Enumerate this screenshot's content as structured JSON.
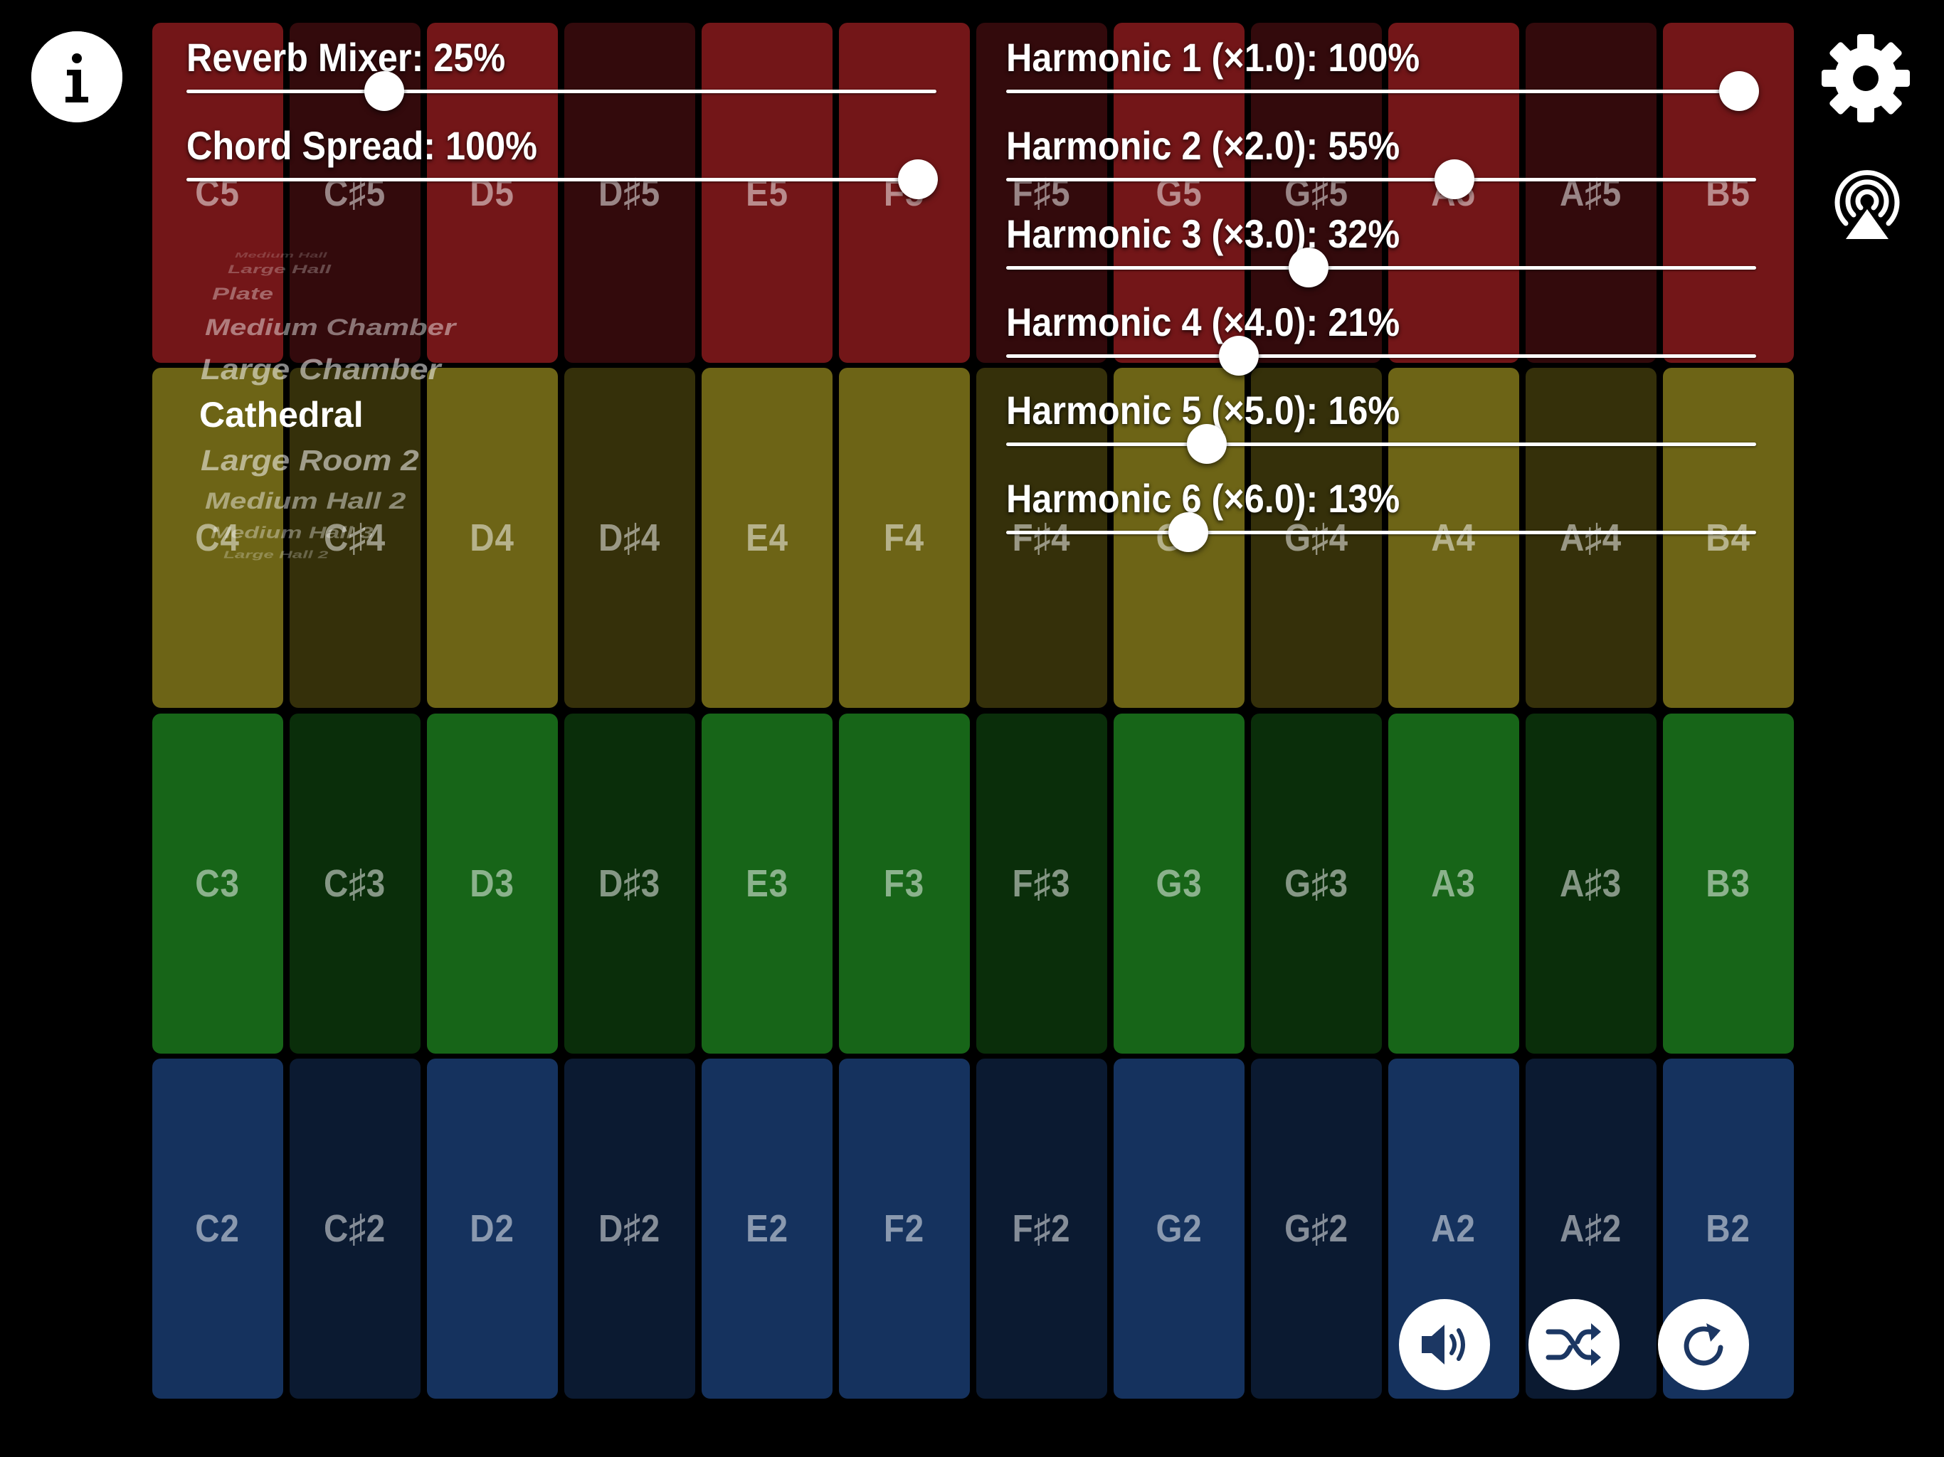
{
  "keyboard": {
    "rows": [
      {
        "octave": "5",
        "colors": [
          "#731618",
          "#330a0c"
        ],
        "keys": [
          "C5",
          "C♯5",
          "D5",
          "D♯5",
          "E5",
          "F5",
          "F♯5",
          "G5",
          "G♯5",
          "A5",
          "A♯5",
          "B5"
        ]
      },
      {
        "octave": "4",
        "colors": [
          "#6d6416",
          "#35300a"
        ],
        "keys": [
          "C4",
          "C♯4",
          "D4",
          "D♯4",
          "E4",
          "F4",
          "F♯4",
          "G4",
          "G♯4",
          "A4",
          "A♯4",
          "B4"
        ]
      },
      {
        "octave": "3",
        "colors": [
          "#176518",
          "#0a2e0a"
        ],
        "keys": [
          "C3",
          "C♯3",
          "D3",
          "D♯3",
          "E3",
          "F3",
          "F♯3",
          "G3",
          "G♯3",
          "A3",
          "A♯3",
          "B3"
        ]
      },
      {
        "octave": "2",
        "colors": [
          "#15325e",
          "#0b1a31"
        ],
        "keys": [
          "C2",
          "C♯2",
          "D2",
          "D♯2",
          "E2",
          "F2",
          "F♯2",
          "G2",
          "G♯2",
          "A2",
          "A♯2",
          "B2"
        ]
      }
    ]
  },
  "left_sliders": [
    {
      "label": "Reverb Mixer: 25%",
      "fraction": 0.25
    },
    {
      "label": "Chord Spread: 100%",
      "fraction": 1.0
    }
  ],
  "harmonics": [
    {
      "label": "Harmonic 1 (×1.0): 100%",
      "fraction": 1.0
    },
    {
      "label": "Harmonic 2 (×2.0): 55%",
      "fraction": 0.55
    },
    {
      "label": "Harmonic 3 (×3.0): 32%",
      "fraction": 0.32
    },
    {
      "label": "Harmonic 4 (×4.0): 21%",
      "fraction": 0.21
    },
    {
      "label": "Harmonic 5 (×5.0): 16%",
      "fraction": 0.16
    },
    {
      "label": "Harmonic 6 (×6.0): 13%",
      "fraction": 0.13
    }
  ],
  "reverb_presets": {
    "selected": "Cathedral",
    "items": [
      "Medium Hall",
      "Large Hall",
      "Plate",
      "Medium Chamber",
      "Large Chamber",
      "Cathedral",
      "Large Room 2",
      "Medium Hall 2",
      "Medium Hall 3",
      "Large Hall 2"
    ]
  },
  "icons": {
    "info": "info-icon",
    "settings": "gear-icon",
    "airplay": "airplay-icon",
    "volume": "speaker-icon",
    "shuffle": "shuffle-icon",
    "reset": "rotate-icon"
  },
  "colors": {
    "button_bg": "#ffffff",
    "button_icon": "#1c3763"
  }
}
